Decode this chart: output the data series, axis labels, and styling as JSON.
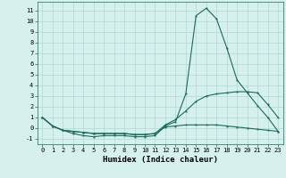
{
  "xlabel": "Humidex (Indice chaleur)",
  "x": [
    0,
    1,
    2,
    3,
    4,
    5,
    6,
    7,
    8,
    9,
    10,
    11,
    12,
    13,
    14,
    15,
    16,
    17,
    18,
    19,
    20,
    21,
    22,
    23
  ],
  "line1": [
    1.0,
    0.2,
    -0.2,
    -0.5,
    -0.7,
    -0.8,
    -0.7,
    -0.7,
    -0.7,
    -0.8,
    -0.8,
    -0.7,
    0.2,
    0.6,
    3.2,
    10.5,
    11.2,
    10.2,
    7.5,
    4.5,
    3.3,
    2.1,
    1.0,
    -0.3
  ],
  "line2": [
    1.0,
    0.2,
    -0.2,
    -0.3,
    -0.4,
    -0.5,
    -0.5,
    -0.5,
    -0.5,
    -0.6,
    -0.6,
    -0.5,
    0.3,
    0.8,
    1.6,
    2.5,
    3.0,
    3.2,
    3.3,
    3.4,
    3.4,
    3.3,
    2.2,
    1.0
  ],
  "line3": [
    1.0,
    0.2,
    -0.2,
    -0.3,
    -0.4,
    -0.5,
    -0.5,
    -0.5,
    -0.5,
    -0.6,
    -0.6,
    -0.5,
    0.1,
    0.2,
    0.3,
    0.3,
    0.3,
    0.3,
    0.2,
    0.1,
    0.0,
    -0.1,
    -0.2,
    -0.3
  ],
  "line_color": "#1a6b5a",
  "bg_color": "#d6f0ee",
  "grid_color": "#b0d8d5",
  "ylim": [
    -1.5,
    11.8
  ],
  "yticks": [
    -1,
    0,
    1,
    2,
    3,
    4,
    5,
    6,
    7,
    8,
    9,
    10,
    11
  ],
  "xticks": [
    0,
    1,
    2,
    3,
    4,
    5,
    6,
    7,
    8,
    9,
    10,
    11,
    12,
    13,
    14,
    15,
    16,
    17,
    18,
    19,
    20,
    21,
    22,
    23
  ],
  "tick_fontsize": 5.0,
  "label_fontsize": 6.5
}
